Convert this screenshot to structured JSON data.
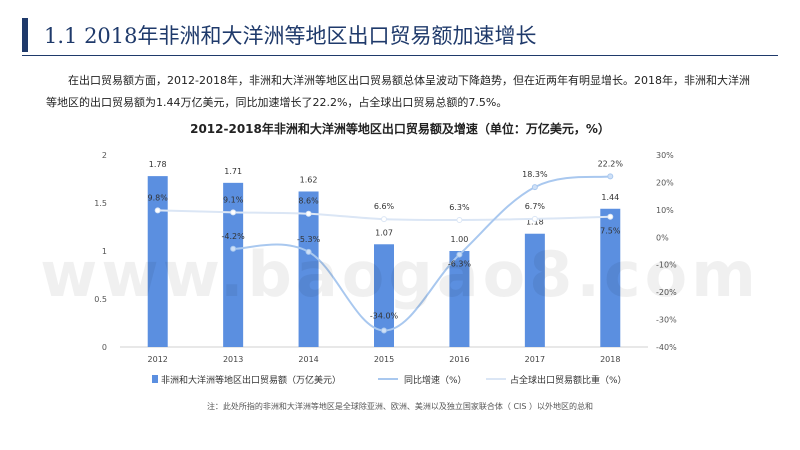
{
  "page": {
    "heading": "1.1  2018年非洲和大洋洲等地区出口贸易额加速增长",
    "paragraph": "在出口贸易额方面，2012-2018年，非洲和大洋洲等地区出口贸易额总体呈波动下降趋势，但在近两年有明显增长。2018年，非洲和大洋洲等地区的出口贸易额为1.44万亿美元，同比加速增长了22.2%，占全球出口贸易总额的7.5%。",
    "note": "注：此处所指的非洲和大洋洲等地区是全球除亚洲、欧洲、美洲以及独立国家联合体（   CIS ）以外地区的总和",
    "watermark": "www.baogao8.com"
  },
  "chart_data": {
    "type": "bar",
    "title": "2012-2018年非洲和大洋洲等地区出口贸易额及增速（单位：万亿美元，%）",
    "categories": [
      "2012",
      "2013",
      "2014",
      "2015",
      "2016",
      "2017",
      "2018"
    ],
    "left_axis": {
      "min": 0,
      "max": 2,
      "ticks": [
        "0",
        "0.5",
        "1",
        "1.5",
        "2"
      ]
    },
    "right_axis": {
      "min": -40,
      "max": 30,
      "ticks": [
        "-40%",
        "-30%",
        "-20%",
        "-10%",
        "0%",
        "10%",
        "20%",
        "30%"
      ]
    },
    "series": [
      {
        "name": "非洲和大洋洲等地区出口贸易额（万亿美元）",
        "type": "bar",
        "axis": "left",
        "color": "#5b8fe0",
        "values": [
          1.78,
          1.71,
          1.62,
          1.07,
          1.0,
          1.18,
          1.44
        ],
        "labels": [
          "1.78",
          "1.71",
          "1.62",
          "1.07",
          "1.00",
          "1.18",
          "1.44"
        ]
      },
      {
        "name": "同比增速（%）",
        "type": "line",
        "axis": "right",
        "color": "#a9c8ef",
        "values": [
          null,
          -4.2,
          -5.3,
          -34.0,
          -6.3,
          18.3,
          22.2
        ],
        "labels": [
          "",
          "-4.2%",
          "-5.3%",
          "-34.0%",
          "-6.3%",
          "18.3%",
          "22.2%"
        ]
      },
      {
        "name": "占全球出口贸易额比重（%）",
        "type": "line",
        "axis": "right",
        "color": "#dbe6f5",
        "values": [
          9.8,
          9.1,
          8.6,
          6.6,
          6.3,
          6.7,
          7.5
        ],
        "labels": [
          "9.8%",
          "9.1%",
          "8.6%",
          "6.6%",
          "6.3%",
          "6.7%",
          "7.5%"
        ]
      }
    ]
  }
}
